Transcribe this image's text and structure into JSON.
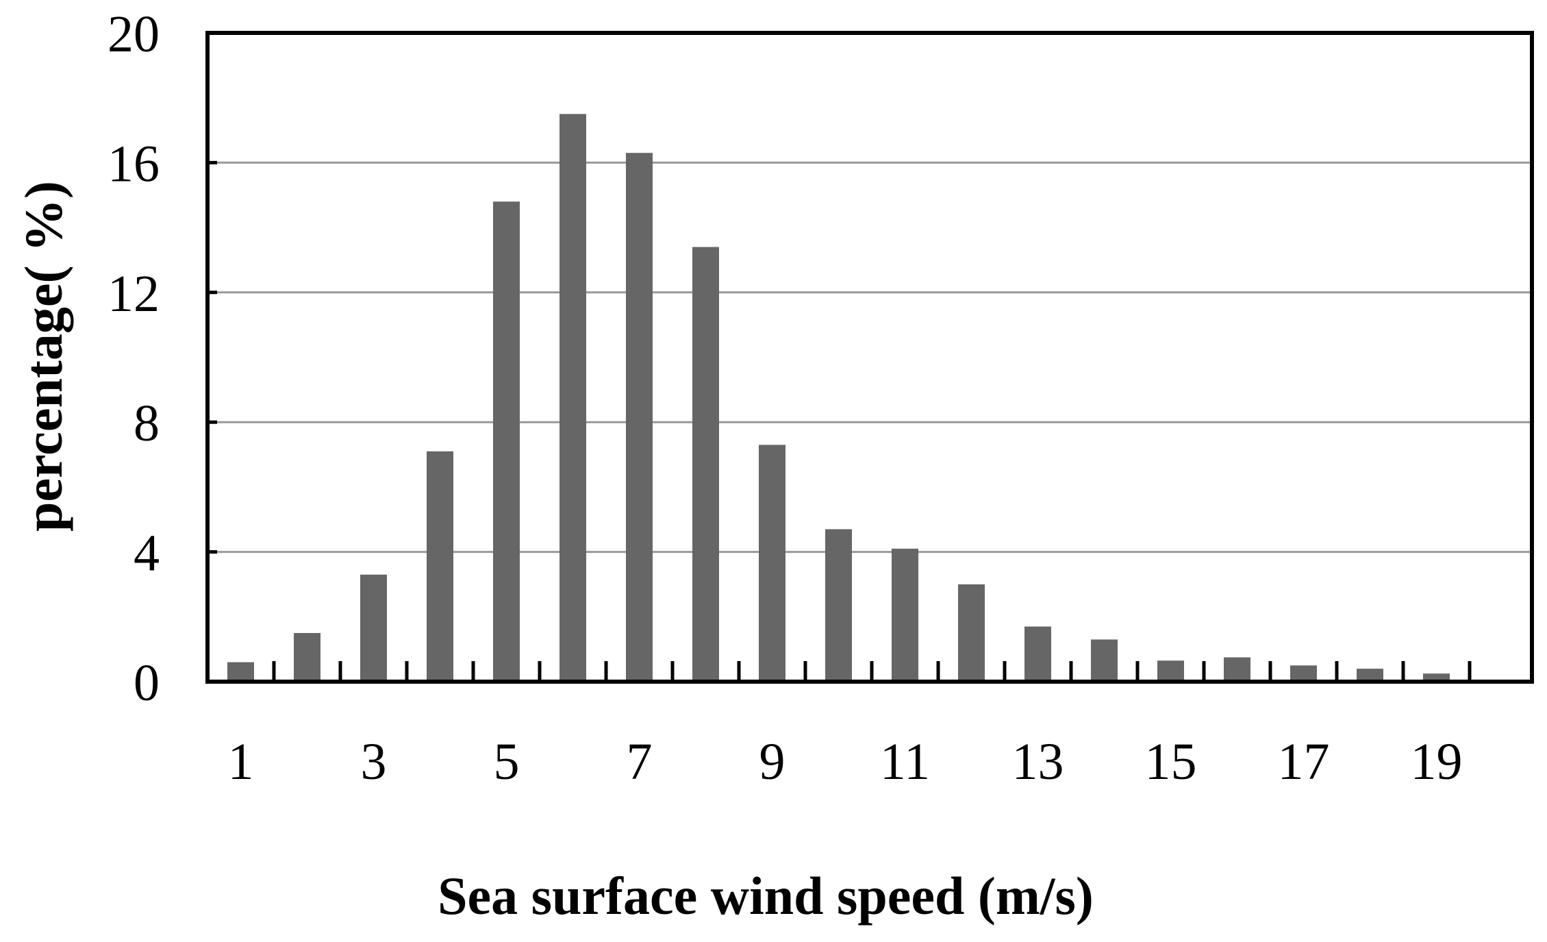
{
  "chart_data": {
    "type": "bar",
    "title": "",
    "xlabel": "Sea surface wind speed (m/s)",
    "ylabel": "percentage( %)",
    "categories": [
      "1",
      "2",
      "3",
      "4",
      "5",
      "6",
      "7",
      "8",
      "9",
      "10",
      "11",
      "12",
      "13",
      "14",
      "15",
      "16",
      "17",
      "18",
      "19"
    ],
    "x_tick_labels": [
      "1",
      "3",
      "5",
      "7",
      "9",
      "11",
      "13",
      "15",
      "17",
      "19"
    ],
    "y_tick_labels": [
      "0",
      "4",
      "8",
      "12",
      "16",
      "20"
    ],
    "values": [
      0.6,
      1.5,
      3.3,
      7.1,
      14.8,
      17.5,
      16.3,
      13.4,
      7.3,
      4.7,
      4.1,
      3.0,
      1.7,
      1.3,
      0.65,
      0.75,
      0.5,
      0.4,
      0.25
    ],
    "ylim": [
      0,
      20
    ],
    "grid": "horizontal",
    "legend": "none",
    "colors": {
      "bar": "#666666",
      "grid": "#999999",
      "axis": "#000000"
    }
  }
}
